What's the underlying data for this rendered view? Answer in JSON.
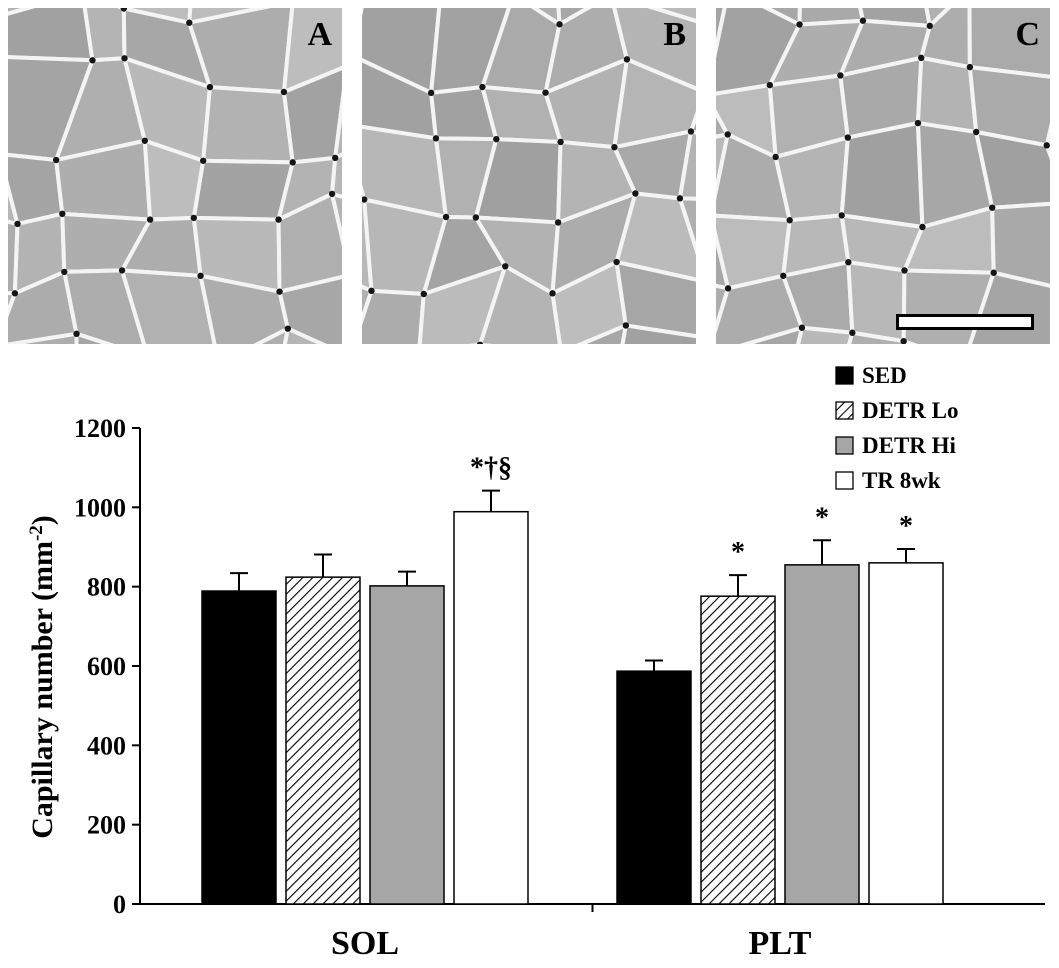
{
  "micrographs": [
    {
      "letter": "A"
    },
    {
      "letter": "B"
    },
    {
      "letter": "C"
    }
  ],
  "chart_data": {
    "type": "bar",
    "categories": [
      "SOL",
      "PLT"
    ],
    "series": [
      {
        "name": "SED",
        "values": [
          789,
          587
        ],
        "errors": [
          45,
          27
        ],
        "annotations": [
          "",
          ""
        ],
        "fill": "solid-black"
      },
      {
        "name": "DETR Lo",
        "values": [
          824,
          776
        ],
        "errors": [
          57,
          53
        ],
        "annotations": [
          "",
          "*"
        ],
        "fill": "diagonal-hatch"
      },
      {
        "name": "DETR Hi",
        "values": [
          802,
          855
        ],
        "errors": [
          36,
          62
        ],
        "annotations": [
          "",
          "*"
        ],
        "fill": "solid-gray"
      },
      {
        "name": "TR 8wk",
        "values": [
          989,
          860
        ],
        "errors": [
          53,
          35
        ],
        "annotations": [
          "*†§",
          "*"
        ],
        "fill": "white"
      }
    ],
    "ylabel": "Capillary number (mm",
    "ylabel_sup": "-2",
    "ylabel_close": ")",
    "ylim": [
      0,
      1200
    ],
    "yticks": [
      0,
      200,
      400,
      600,
      800,
      1000,
      1200
    ],
    "legend_position": "top-right",
    "grid": false
  },
  "colors": {
    "black": "#000000",
    "gray": "#a6a6a6",
    "white": "#ffffff"
  }
}
